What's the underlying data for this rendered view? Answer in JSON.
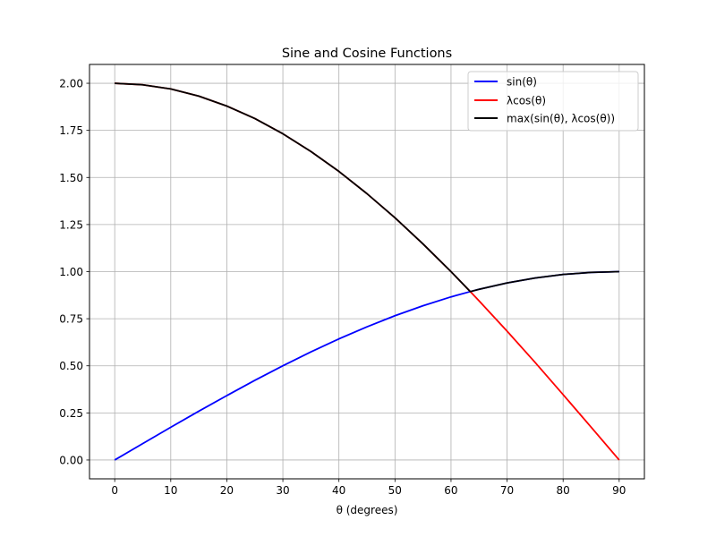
{
  "chart_data": {
    "type": "line",
    "title": "Sine and Cosine Functions",
    "xlabel": "θ (degrees)",
    "ylabel": "",
    "xlim": [
      -4.5,
      94.5
    ],
    "ylim": [
      -0.1,
      2.1
    ],
    "xticks": [
      0,
      10,
      20,
      30,
      40,
      50,
      60,
      70,
      80,
      90
    ],
    "xtick_labels": [
      "0",
      "10",
      "20",
      "30",
      "40",
      "50",
      "60",
      "70",
      "80",
      "90"
    ],
    "yticks": [
      0,
      0.25,
      0.5,
      0.75,
      1.0,
      1.25,
      1.5,
      1.75,
      2.0
    ],
    "ytick_labels": [
      "0.00",
      "0.25",
      "0.50",
      "0.75",
      "1.00",
      "1.25",
      "1.50",
      "1.75",
      "2.00"
    ],
    "grid": true,
    "legend_position": "top-right",
    "x": [
      0,
      5,
      10,
      15,
      20,
      25,
      30,
      35,
      40,
      45,
      50,
      55,
      60,
      63.43,
      65,
      70,
      75,
      80,
      85,
      90
    ],
    "series": [
      {
        "name": "sin(θ)",
        "color": "#0000ff",
        "values": [
          0.0,
          0.087,
          0.174,
          0.259,
          0.342,
          0.423,
          0.5,
          0.574,
          0.643,
          0.707,
          0.766,
          0.819,
          0.866,
          0.894,
          0.906,
          0.94,
          0.966,
          0.985,
          0.996,
          1.0
        ]
      },
      {
        "name": "λcos(θ)",
        "color": "#ff0000",
        "values": [
          2.0,
          1.992,
          1.97,
          1.932,
          1.879,
          1.813,
          1.732,
          1.638,
          1.532,
          1.414,
          1.286,
          1.147,
          1.0,
          0.894,
          0.845,
          0.684,
          0.518,
          0.347,
          0.174,
          0.0
        ]
      },
      {
        "name": "max(sin(θ), λcos(θ))",
        "color": "#000000",
        "values": [
          2.0,
          1.992,
          1.97,
          1.932,
          1.879,
          1.813,
          1.732,
          1.638,
          1.532,
          1.414,
          1.286,
          1.147,
          1.0,
          0.894,
          0.906,
          0.94,
          0.966,
          0.985,
          0.996,
          1.0
        ]
      }
    ]
  }
}
